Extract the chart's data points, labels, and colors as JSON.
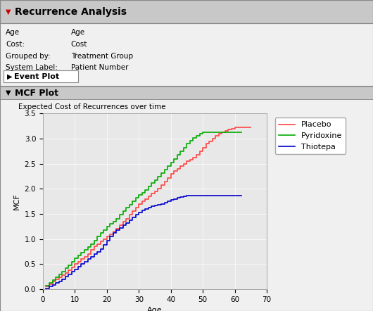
{
  "title_panel": "Recurrence Analysis",
  "meta_rows": [
    [
      "Age",
      "Age"
    ],
    [
      "Cost:",
      "Cost"
    ],
    [
      "Grouped by:",
      "Treatment Group"
    ],
    [
      "System Label:",
      "Patient Number"
    ]
  ],
  "event_plot_label": "Event Plot",
  "mcf_plot_label": "MCF Plot",
  "chart_subtitle": "Expected Cost of Recurrences over time",
  "xlabel": "Age",
  "ylabel": "MCF",
  "xlim": [
    0,
    70
  ],
  "ylim": [
    0.0,
    3.5
  ],
  "yticks": [
    0.0,
    0.5,
    1.0,
    1.5,
    2.0,
    2.5,
    3.0,
    3.5
  ],
  "xticks": [
    0,
    10,
    20,
    30,
    40,
    50,
    60,
    70
  ],
  "legend_labels": [
    "Placebo",
    "Pyridoxine",
    "Thiotepa"
  ],
  "line_colors": [
    "#ff4444",
    "#00aa00",
    "#0000cc"
  ],
  "placebo_x": [
    1,
    2,
    3,
    4,
    5,
    6,
    7,
    8,
    9,
    10,
    11,
    12,
    13,
    14,
    15,
    16,
    17,
    18,
    19,
    20,
    21,
    22,
    23,
    24,
    25,
    26,
    27,
    28,
    29,
    30,
    31,
    32,
    33,
    34,
    35,
    36,
    37,
    38,
    39,
    40,
    41,
    42,
    43,
    44,
    45,
    46,
    47,
    48,
    49,
    50,
    51,
    52,
    53,
    54,
    55,
    56,
    57,
    58,
    59,
    60,
    61,
    62,
    63,
    65
  ],
  "placebo_y": [
    0.05,
    0.1,
    0.15,
    0.2,
    0.24,
    0.28,
    0.33,
    0.38,
    0.43,
    0.5,
    0.55,
    0.6,
    0.65,
    0.7,
    0.78,
    0.85,
    0.9,
    0.95,
    1.0,
    1.05,
    1.1,
    1.15,
    1.2,
    1.28,
    1.35,
    1.4,
    1.48,
    1.55,
    1.62,
    1.7,
    1.75,
    1.8,
    1.85,
    1.9,
    1.95,
    2.0,
    2.08,
    2.15,
    2.22,
    2.3,
    2.35,
    2.4,
    2.45,
    2.5,
    2.55,
    2.58,
    2.62,
    2.68,
    2.75,
    2.82,
    2.9,
    2.95,
    3.0,
    3.05,
    3.1,
    3.13,
    3.16,
    3.18,
    3.2,
    3.22,
    3.22,
    3.22,
    3.22,
    3.22
  ],
  "pyridoxine_x": [
    1,
    2,
    3,
    4,
    5,
    6,
    7,
    8,
    9,
    10,
    11,
    12,
    13,
    14,
    15,
    16,
    17,
    18,
    19,
    20,
    21,
    22,
    23,
    24,
    25,
    26,
    27,
    28,
    29,
    30,
    31,
    32,
    33,
    34,
    35,
    36,
    37,
    38,
    39,
    40,
    41,
    42,
    43,
    44,
    45,
    46,
    47,
    48,
    49,
    50,
    51,
    52,
    53,
    54,
    55,
    56,
    57,
    58,
    59,
    60,
    62
  ],
  "pyridoxine_y": [
    0.07,
    0.13,
    0.18,
    0.24,
    0.3,
    0.35,
    0.42,
    0.48,
    0.55,
    0.62,
    0.68,
    0.73,
    0.78,
    0.84,
    0.9,
    0.97,
    1.05,
    1.12,
    1.18,
    1.25,
    1.3,
    1.35,
    1.4,
    1.48,
    1.55,
    1.62,
    1.68,
    1.75,
    1.82,
    1.88,
    1.92,
    1.98,
    2.05,
    2.12,
    2.18,
    2.25,
    2.32,
    2.38,
    2.45,
    2.52,
    2.6,
    2.68,
    2.75,
    2.82,
    2.9,
    2.96,
    3.02,
    3.06,
    3.1,
    3.12,
    3.12,
    3.12,
    3.12,
    3.12,
    3.12,
    3.12,
    3.12,
    3.12,
    3.12,
    3.12,
    3.12
  ],
  "thiotepa_x": [
    1,
    2,
    3,
    4,
    5,
    6,
    7,
    8,
    9,
    10,
    11,
    12,
    13,
    14,
    15,
    16,
    17,
    18,
    19,
    20,
    21,
    22,
    23,
    24,
    25,
    26,
    27,
    28,
    29,
    30,
    31,
    32,
    33,
    34,
    35,
    36,
    37,
    38,
    39,
    40,
    41,
    42,
    43,
    44,
    45,
    46,
    47,
    48,
    49,
    50,
    51,
    52,
    53,
    54,
    55,
    56,
    57,
    58,
    59,
    60,
    62
  ],
  "thiotepa_y": [
    0.02,
    0.05,
    0.08,
    0.12,
    0.16,
    0.2,
    0.25,
    0.3,
    0.35,
    0.4,
    0.45,
    0.5,
    0.55,
    0.6,
    0.65,
    0.7,
    0.75,
    0.8,
    0.88,
    0.97,
    1.05,
    1.12,
    1.18,
    1.22,
    1.27,
    1.32,
    1.37,
    1.43,
    1.48,
    1.53,
    1.57,
    1.6,
    1.63,
    1.65,
    1.67,
    1.68,
    1.7,
    1.72,
    1.75,
    1.78,
    1.8,
    1.82,
    1.84,
    1.85,
    1.86,
    1.86,
    1.87,
    1.87,
    1.87,
    1.87,
    1.87,
    1.87,
    1.87,
    1.87,
    1.87,
    1.87,
    1.87,
    1.87,
    1.87,
    1.87,
    1.87
  ],
  "bg_color": "#f0f0f0",
  "plot_bg_color": "#e8e8e8",
  "header_bg": "#c8c8c8",
  "panel_bg": "#e0e0e0"
}
